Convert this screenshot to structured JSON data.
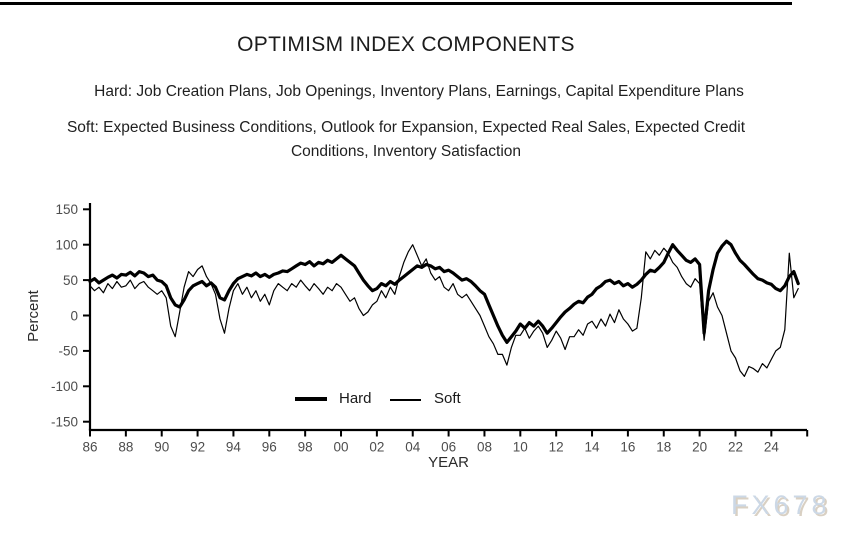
{
  "header": {
    "title": "OPTIMISM INDEX COMPONENTS",
    "hard_label": "Hard:",
    "hard_items": "Job Creation Plans, Job Openings, Inventory Plans, Earnings, Capital Expenditure Plans",
    "soft_label": "Soft:",
    "soft_items": "Expected Business Conditions, Outlook for Expansion, Expected Real Sales, Expected Credit Conditions, Inventory Satisfaction"
  },
  "watermark": {
    "text": "FX678"
  },
  "chart_data": {
    "type": "line",
    "title": "OPTIMISM INDEX COMPONENTS",
    "xlabel": "YEAR",
    "ylabel": "Percent",
    "ylim": [
      -150,
      150
    ],
    "y_ticks": [
      150,
      100,
      50,
      0,
      -50,
      -100,
      -150
    ],
    "x_tick_years": [
      1986,
      1988,
      1990,
      1992,
      1994,
      1996,
      1998,
      2000,
      2002,
      2004,
      2006,
      2008,
      2010,
      2012,
      2014,
      2016,
      2018,
      2020,
      2022,
      2024,
      2026
    ],
    "x_tick_labels": [
      "86",
      "88",
      "90",
      "92",
      "94",
      "96",
      "98",
      "00",
      "02",
      "04",
      "06",
      "08",
      "10",
      "12",
      "14",
      "16",
      "18",
      "20",
      "22",
      "24",
      ""
    ],
    "x_start": 1986.0,
    "x_step": 0.25,
    "grid": false,
    "legend_position": "inside-bottom-center",
    "line_color": "#000000",
    "tick_label_color": "#4d4d4d",
    "series": [
      {
        "name": "Hard",
        "style": "thick",
        "stroke_width": 3.2,
        "values": [
          48,
          52,
          46,
          50,
          54,
          57,
          53,
          58,
          57,
          61,
          56,
          62,
          60,
          55,
          57,
          50,
          48,
          42,
          25,
          15,
          12,
          22,
          35,
          42,
          45,
          48,
          42,
          46,
          40,
          25,
          22,
          35,
          45,
          52,
          55,
          58,
          56,
          60,
          55,
          58,
          54,
          58,
          60,
          63,
          62,
          66,
          70,
          74,
          72,
          76,
          70,
          75,
          73,
          78,
          75,
          80,
          85,
          80,
          75,
          70,
          60,
          50,
          42,
          35,
          38,
          45,
          42,
          48,
          44,
          50,
          55,
          60,
          65,
          70,
          68,
          72,
          70,
          66,
          68,
          62,
          64,
          60,
          55,
          50,
          52,
          48,
          42,
          35,
          30,
          15,
          0,
          -15,
          -28,
          -38,
          -30,
          -22,
          -12,
          -18,
          -10,
          -15,
          -8,
          -15,
          -25,
          -18,
          -10,
          -2,
          5,
          10,
          16,
          20,
          18,
          26,
          30,
          38,
          42,
          48,
          50,
          45,
          48,
          42,
          45,
          40,
          44,
          50,
          58,
          64,
          62,
          68,
          75,
          88,
          100,
          92,
          85,
          78,
          75,
          80,
          72,
          -25,
          35,
          65,
          88,
          98,
          105,
          100,
          88,
          78,
          72,
          65,
          58,
          52,
          50,
          46,
          44,
          38,
          35,
          42,
          55,
          62,
          45
        ]
      },
      {
        "name": "Soft",
        "style": "thin",
        "stroke_width": 1.2,
        "values": [
          42,
          35,
          40,
          32,
          45,
          38,
          48,
          40,
          42,
          50,
          38,
          45,
          48,
          40,
          35,
          30,
          35,
          25,
          -15,
          -30,
          5,
          40,
          62,
          55,
          65,
          70,
          55,
          45,
          30,
          -5,
          -25,
          10,
          35,
          45,
          30,
          40,
          25,
          35,
          20,
          30,
          15,
          35,
          45,
          40,
          35,
          45,
          40,
          50,
          42,
          35,
          45,
          38,
          30,
          40,
          35,
          45,
          40,
          30,
          20,
          25,
          10,
          0,
          5,
          15,
          20,
          35,
          25,
          40,
          30,
          55,
          75,
          90,
          100,
          85,
          70,
          80,
          60,
          50,
          55,
          40,
          35,
          45,
          30,
          25,
          30,
          20,
          10,
          0,
          -15,
          -30,
          -40,
          -55,
          -55,
          -70,
          -45,
          -28,
          -28,
          -18,
          -32,
          -22,
          -15,
          -25,
          -45,
          -35,
          -22,
          -32,
          -48,
          -30,
          -30,
          -20,
          -28,
          -12,
          -8,
          -18,
          -5,
          -15,
          2,
          -10,
          8,
          -5,
          -12,
          -22,
          -18,
          25,
          90,
          80,
          92,
          85,
          95,
          88,
          75,
          68,
          55,
          45,
          40,
          52,
          45,
          -35,
          20,
          32,
          12,
          0,
          -25,
          -50,
          -60,
          -78,
          -86,
          -72,
          -75,
          -80,
          -68,
          -74,
          -62,
          -50,
          -45,
          -20,
          88,
          25,
          38
        ]
      }
    ]
  }
}
